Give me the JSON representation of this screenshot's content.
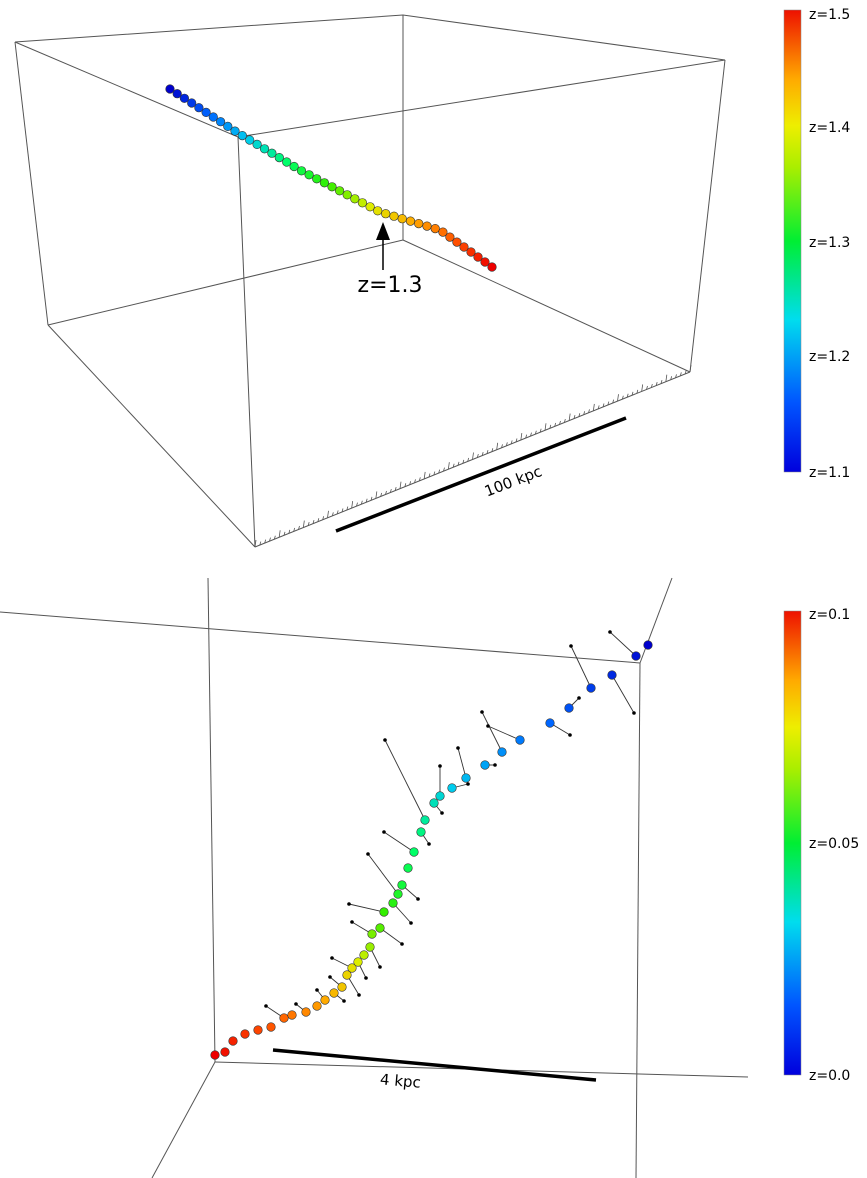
{
  "panels": [
    {
      "id": "top",
      "colorbar": {
        "labels": [
          "z=1.5",
          "z=1.4",
          "z=1.3",
          "z=1.2",
          "z=1.1"
        ],
        "min": 1.1,
        "max": 1.5
      },
      "annotation": "z=1.3",
      "scale_bar": "100 kpc"
    },
    {
      "id": "bottom",
      "colorbar": {
        "labels": [
          "z=0.1",
          "z=0.05",
          "z=0.0"
        ],
        "min": 0.0,
        "max": 0.1
      },
      "scale_bar": "4 kpc"
    }
  ],
  "colormap": [
    "#0000cc",
    "#0066ff",
    "#00ccee",
    "#00ff66",
    "#33ee00",
    "#ddee00",
    "#ffaa00",
    "#ff5500",
    "#ee0000"
  ]
}
